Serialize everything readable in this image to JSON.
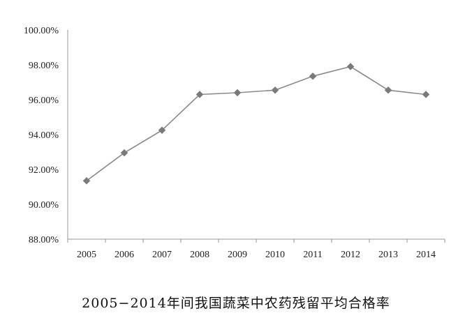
{
  "chart_data": {
    "type": "line",
    "title": "2005−2014年间我国蔬菜中农药残留平均合格率",
    "xlabel": "",
    "ylabel": "",
    "categories": [
      "2005",
      "2006",
      "2007",
      "2008",
      "2009",
      "2010",
      "2011",
      "2012",
      "2013",
      "2014"
    ],
    "series": [
      {
        "values": [
          91.35,
          92.95,
          94.25,
          96.3,
          96.4,
          96.55,
          97.35,
          97.9,
          96.55,
          96.3
        ],
        "color": "#8a8a8a",
        "marker": "diamond",
        "marker_color": "#7a7a7a"
      }
    ],
    "ylim": [
      88,
      100
    ],
    "yticks": [
      88,
      90,
      92,
      94,
      96,
      98,
      100
    ],
    "ytick_labels": [
      "88.00%",
      "90.00%",
      "92.00%",
      "94.00%",
      "96.00%",
      "98.00%",
      "100.00%"
    ],
    "grid": false,
    "legend": "none"
  }
}
